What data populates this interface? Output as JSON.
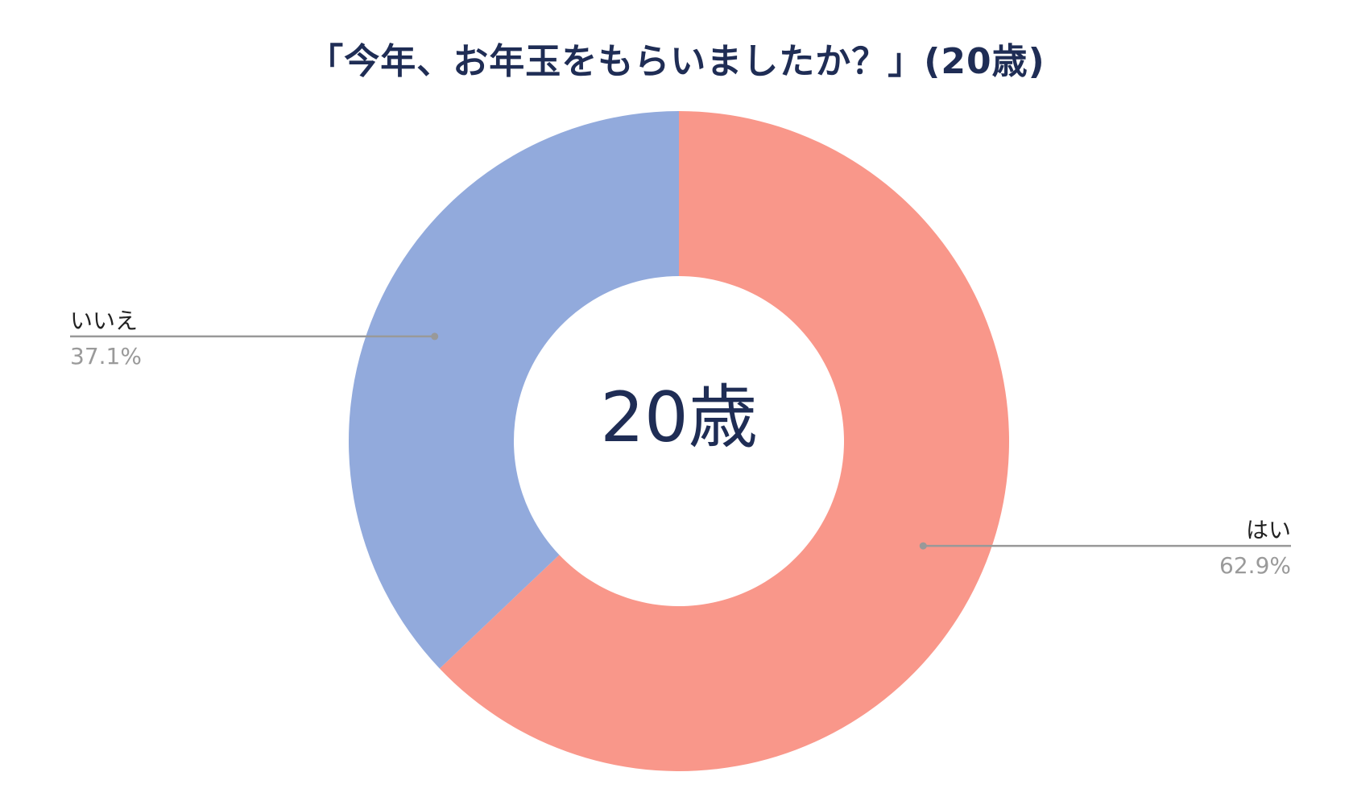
{
  "chart_data": {
    "type": "pie",
    "title": "「今年、お年玉をもらいましたか？」(20歳)",
    "center_label": "20歳",
    "categories": [
      "はい",
      "いいえ"
    ],
    "values": [
      62.9,
      37.1
    ],
    "value_labels": [
      "62.9%",
      "37.1%"
    ],
    "colors": [
      "#F9978A",
      "#92AADC"
    ],
    "donut": true,
    "legend": "none",
    "label_placement": "outside with leader lines"
  }
}
